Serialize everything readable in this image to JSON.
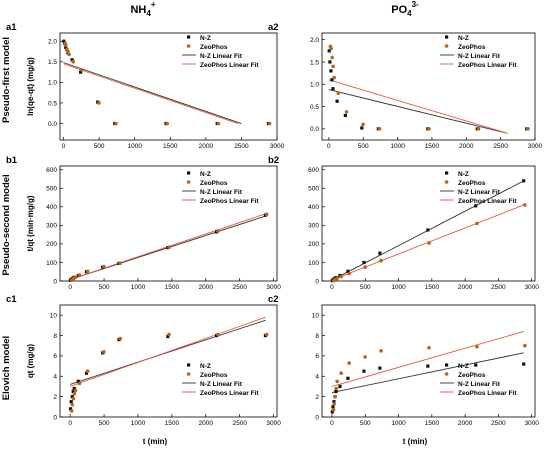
{
  "figure": {
    "col_titles": [
      {
        "base": "NH",
        "sub": "4",
        "sup": "+"
      },
      {
        "base": "PO",
        "sub": "4",
        "sup": "3-"
      }
    ],
    "row_labels": [
      "Pseudo-first model",
      "Pseudo-second model",
      "Elovich model"
    ],
    "x_label": "t (min)"
  },
  "colors": {
    "nz": "#111111",
    "zeo": "#b5651d",
    "nz_fit": "#333333",
    "zeo_fit": "#e05a4a"
  },
  "chart_data": [
    {
      "id": "a1",
      "type": "scatter",
      "ylabel": "ln(qe-qt) (mg/g)",
      "xlim": [
        -50,
        3000
      ],
      "ylim": [
        -0.4,
        2.2
      ],
      "xticks": [
        0,
        500,
        1000,
        1500,
        2000,
        2500,
        3000
      ],
      "yticks": [
        0.0,
        0.5,
        1.0,
        1.5,
        2.0
      ],
      "ytick_labels": [
        "0.0",
        "0.5",
        "1.0",
        "1.5",
        "2.0"
      ],
      "legend": [
        "N-Z",
        "ZeoPhos",
        "N-Z Linear Fit",
        "ZeoPhos Linear Fit"
      ],
      "series": [
        {
          "name": "N-Z",
          "x": [
            5,
            15,
            30,
            45,
            60,
            120,
            240,
            480,
            720,
            1440,
            2160,
            2880
          ],
          "y": [
            2.0,
            1.95,
            1.85,
            1.8,
            1.72,
            1.55,
            1.25,
            0.52,
            0.0,
            0.0,
            0.0,
            0.0
          ]
        },
        {
          "name": "ZeoPhos",
          "x": [
            5,
            15,
            30,
            45,
            60,
            120,
            240,
            480,
            720,
            1440,
            2160,
            2880
          ],
          "y": [
            1.95,
            1.9,
            1.8,
            1.75,
            1.68,
            1.5,
            1.3,
            0.5,
            0.0,
            0.0,
            0.0,
            0.0
          ]
        },
        {
          "name": "N-Z Linear Fit",
          "x": [
            0,
            2500
          ],
          "y": [
            1.48,
            0.0
          ]
        },
        {
          "name": "ZeoPhos Linear Fit",
          "x": [
            0,
            2450
          ],
          "y": [
            1.45,
            0.0
          ]
        }
      ]
    },
    {
      "id": "a2",
      "type": "scatter",
      "ylabel": "",
      "xlim": [
        -100,
        3000
      ],
      "ylim": [
        -0.25,
        2.15
      ],
      "xticks": [
        0,
        500,
        1000,
        1500,
        2000,
        2500,
        3000
      ],
      "yticks": [
        0.0,
        0.5,
        1.0,
        1.5,
        2.0
      ],
      "ytick_labels": [
        "0.0",
        "0.5",
        "1.0",
        "1.5",
        "2.0"
      ],
      "legend": [
        "N-Z",
        "ZeoPhos",
        "N-Z Linear Fit",
        "ZeoPhos Linear Fit"
      ],
      "series": [
        {
          "name": "N-Z",
          "x": [
            5,
            15,
            30,
            45,
            60,
            120,
            240,
            480,
            720,
            1440,
            2160,
            2880
          ],
          "y": [
            1.75,
            1.5,
            1.3,
            1.1,
            0.9,
            0.62,
            0.3,
            0.02,
            0.0,
            0.0,
            0.0,
            0.0
          ]
        },
        {
          "name": "ZeoPhos",
          "x": [
            5,
            15,
            30,
            45,
            60,
            120,
            240,
            480,
            720,
            1440,
            2160,
            2880
          ],
          "y": [
            1.85,
            1.8,
            1.6,
            1.4,
            1.15,
            0.8,
            0.38,
            0.1,
            0.0,
            0.0,
            0.0,
            0.0
          ]
        },
        {
          "name": "N-Z Linear Fit",
          "x": [
            0,
            2600
          ],
          "y": [
            0.88,
            -0.1
          ]
        },
        {
          "name": "ZeoPhos Linear Fit",
          "x": [
            0,
            2600
          ],
          "y": [
            1.1,
            -0.1
          ]
        }
      ]
    },
    {
      "id": "b1",
      "type": "scatter",
      "ylabel": "t/qt (min·mg/g)",
      "xlim": [
        -150,
        3050
      ],
      "ylim": [
        0,
        620
      ],
      "xticks": [
        0,
        500,
        1000,
        1500,
        2000,
        2500,
        3000
      ],
      "yticks": [
        0,
        100,
        200,
        300,
        400,
        500,
        600
      ],
      "ytick_labels": [
        "0",
        "100",
        "200",
        "300",
        "400",
        "500",
        "600"
      ],
      "legend": [
        "N-Z",
        "ZeoPhos",
        "N-Z Linear Fit",
        "ZeoPhos Linear Fit"
      ],
      "series": [
        {
          "name": "N-Z",
          "x": [
            5,
            15,
            30,
            45,
            60,
            120,
            240,
            480,
            720,
            1440,
            2160,
            2880
          ],
          "y": [
            4,
            8,
            12,
            16,
            20,
            30,
            50,
            75,
            95,
            180,
            265,
            355
          ]
        },
        {
          "name": "ZeoPhos",
          "x": [
            5,
            15,
            30,
            45,
            60,
            120,
            240,
            480,
            720,
            1440,
            2160,
            2880
          ],
          "y": [
            4,
            8,
            12,
            16,
            20,
            32,
            52,
            78,
            96,
            182,
            270,
            360
          ]
        },
        {
          "name": "N-Z Linear Fit",
          "x": [
            0,
            2880
          ],
          "y": [
            8,
            350
          ]
        },
        {
          "name": "ZeoPhos Linear Fit",
          "x": [
            0,
            2880
          ],
          "y": [
            8,
            362
          ]
        }
      ]
    },
    {
      "id": "b2",
      "type": "scatter",
      "ylabel": "",
      "xlim": [
        -150,
        3050
      ],
      "ylim": [
        0,
        620
      ],
      "xticks": [
        0,
        500,
        1000,
        1500,
        2000,
        2500,
        3000
      ],
      "yticks": [
        0,
        100,
        200,
        300,
        400,
        500,
        600
      ],
      "ytick_labels": [
        "0",
        "100",
        "200",
        "300",
        "400",
        "500",
        "600"
      ],
      "legend": [
        "N-Z",
        "ZeoPhos",
        "N-Z Linear Fit",
        "ZeoPhos Linear Fit"
      ],
      "series": [
        {
          "name": "N-Z",
          "x": [
            5,
            15,
            30,
            45,
            60,
            120,
            240,
            480,
            720,
            1440,
            2160,
            2880
          ],
          "y": [
            2,
            5,
            10,
            14,
            18,
            30,
            52,
            100,
            150,
            275,
            405,
            540
          ]
        },
        {
          "name": "ZeoPhos",
          "x": [
            5,
            15,
            30,
            45,
            60,
            120,
            240,
            480,
            720,
            1440,
            2160,
            2880
          ],
          "y": [
            2,
            4,
            8,
            11,
            14,
            24,
            40,
            75,
            110,
            205,
            310,
            410
          ]
        },
        {
          "name": "N-Z Linear Fit",
          "x": [
            0,
            2880
          ],
          "y": [
            5,
            540
          ]
        },
        {
          "name": "ZeoPhos Linear Fit",
          "x": [
            0,
            2880
          ],
          "y": [
            5,
            410
          ]
        }
      ]
    },
    {
      "id": "c1",
      "type": "scatter",
      "ylabel": "qt (mg/g)",
      "xlim": [
        -150,
        3050
      ],
      "ylim": [
        0,
        11
      ],
      "xticks": [
        0,
        500,
        1000,
        1500,
        2000,
        2500,
        3000
      ],
      "yticks": [
        0,
        2,
        4,
        6,
        8,
        10
      ],
      "ytick_labels": [
        "0",
        "2",
        "4",
        "6",
        "8",
        "10"
      ],
      "legend": [
        "N-Z",
        "ZeoPhos",
        "N-Z Linear Fit",
        "ZeoPhos Linear Fit"
      ],
      "series": [
        {
          "name": "N-Z",
          "x": [
            5,
            15,
            30,
            45,
            60,
            120,
            240,
            480,
            720,
            1440,
            2160,
            2880
          ],
          "y": [
            0.8,
            1.5,
            2.0,
            2.5,
            2.8,
            3.5,
            4.3,
            6.3,
            7.6,
            7.9,
            8.0,
            8.0
          ]
        },
        {
          "name": "ZeoPhos",
          "x": [
            5,
            15,
            30,
            45,
            60,
            120,
            240,
            480,
            720,
            1440,
            2160,
            2880
          ],
          "y": [
            0.6,
            1.2,
            1.8,
            2.3,
            2.6,
            3.3,
            4.5,
            6.4,
            7.7,
            8.1,
            8.1,
            8.1
          ]
        },
        {
          "name": "N-Z Linear Fit",
          "x": [
            0,
            2880
          ],
          "y": [
            3.2,
            9.5
          ]
        },
        {
          "name": "ZeoPhos Linear Fit",
          "x": [
            0,
            2880
          ],
          "y": [
            3.0,
            9.8
          ]
        }
      ]
    },
    {
      "id": "c2",
      "type": "scatter",
      "ylabel": "",
      "xlim": [
        -150,
        3050
      ],
      "ylim": [
        0,
        11
      ],
      "xticks": [
        0,
        500,
        1000,
        1500,
        2000,
        2500,
        3000
      ],
      "yticks": [
        0,
        2,
        4,
        6,
        8,
        10
      ],
      "ytick_labels": [
        "0",
        "2",
        "4",
        "6",
        "8",
        "10"
      ],
      "legend": [
        "N-Z",
        "ZeoPhos",
        "N-Z Linear Fit",
        "ZeoPhos Linear Fit"
      ],
      "series": [
        {
          "name": "N-Z",
          "x": [
            5,
            15,
            30,
            45,
            60,
            120,
            240,
            480,
            720,
            1440,
            2160,
            2880
          ],
          "y": [
            0.5,
            1.0,
            1.5,
            2.0,
            2.5,
            3.0,
            3.8,
            4.5,
            4.8,
            5.0,
            5.1,
            5.2
          ]
        },
        {
          "name": "ZeoPhos",
          "x": [
            5,
            15,
            30,
            45,
            60,
            120,
            240,
            480,
            720,
            1440,
            2160,
            2880
          ],
          "y": [
            0.7,
            1.3,
            2.0,
            2.8,
            3.5,
            4.3,
            5.3,
            5.9,
            6.5,
            6.8,
            6.9,
            7.0
          ]
        },
        {
          "name": "N-Z Linear Fit",
          "x": [
            0,
            2880
          ],
          "y": [
            2.4,
            6.3
          ]
        },
        {
          "name": "ZeoPhos Linear Fit",
          "x": [
            0,
            2880
          ],
          "y": [
            3.0,
            8.4
          ]
        }
      ]
    }
  ]
}
